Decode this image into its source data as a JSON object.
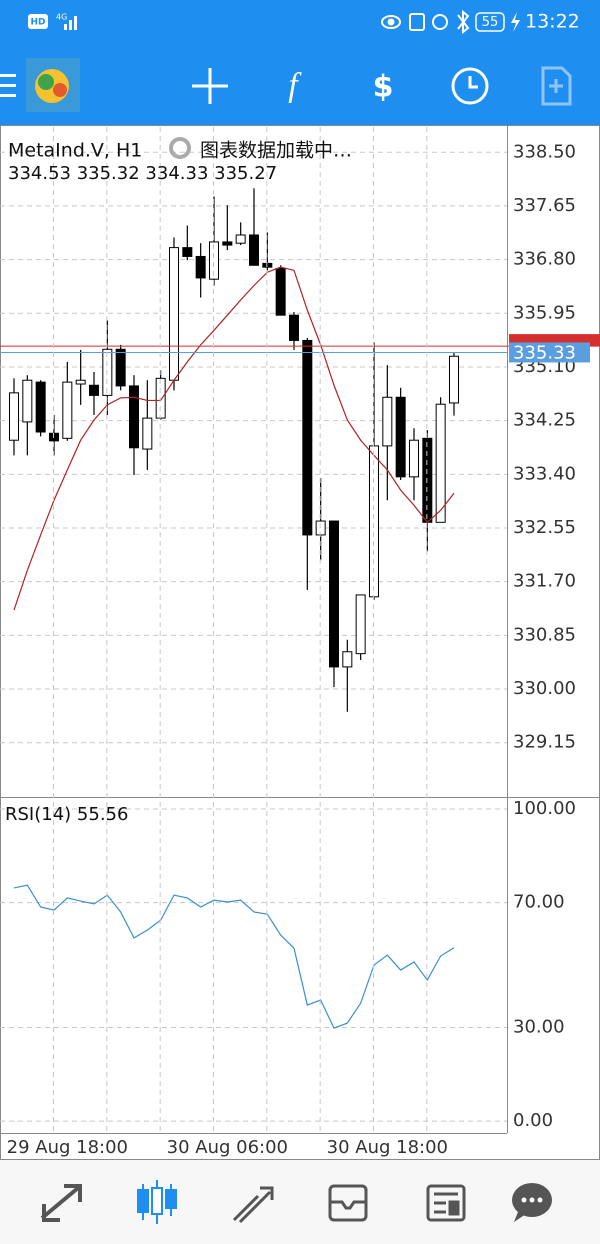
{
  "status_bar": {
    "hd": "HD",
    "network": "4G",
    "battery": "55",
    "time": "13:22"
  },
  "chart_data": [
    {
      "type": "candlestick",
      "title": "MetaInd.V, H1",
      "subtitle": "图表数据加载中…",
      "ohlc_label": "334.53 335.32 334.33 335.27",
      "open": [
        333.94,
        334.23,
        334.86,
        334.05,
        333.97,
        334.83,
        334.81,
        334.65,
        335.38,
        334.8,
        333.8,
        334.29,
        334.89,
        336.99,
        336.85,
        336.49,
        337.08,
        337.06,
        337.19,
        336.74,
        336.66,
        335.92,
        335.52,
        332.44,
        332.66,
        330.35,
        330.56,
        331.46,
        333.85,
        334.62,
        333.36,
        333.97,
        332.64,
        334.53
      ],
      "high": [
        334.92,
        334.97,
        334.89,
        334.34,
        335.18,
        335.37,
        335.02,
        335.84,
        335.45,
        334.97,
        334.89,
        335.05,
        337.15,
        337.34,
        337.06,
        337.8,
        337.66,
        337.39,
        337.93,
        337.23,
        336.71,
        335.97,
        335.56,
        333.34,
        332.66,
        330.78,
        331.49,
        335.49,
        335.13,
        334.77,
        334.13,
        334.1,
        334.62,
        335.32
      ],
      "low": [
        333.7,
        333.7,
        334.0,
        333.7,
        333.93,
        334.5,
        334.34,
        334.34,
        334.73,
        333.39,
        333.47,
        334.26,
        334.73,
        336.79,
        336.2,
        336.39,
        336.95,
        337.03,
        336.71,
        336.63,
        335.92,
        335.37,
        331.57,
        332.04,
        330.03,
        329.64,
        330.46,
        331.41,
        332.99,
        333.31,
        332.99,
        332.18,
        332.64,
        334.33
      ],
      "close": [
        334.69,
        334.89,
        334.07,
        333.93,
        334.86,
        334.89,
        334.65,
        335.38,
        334.8,
        333.82,
        334.29,
        334.92,
        336.99,
        336.85,
        336.51,
        337.08,
        337.03,
        337.19,
        336.71,
        336.68,
        335.92,
        335.52,
        332.44,
        332.66,
        330.35,
        330.59,
        331.49,
        333.85,
        334.62,
        333.36,
        333.94,
        332.64,
        334.51,
        335.27
      ],
      "up_color": "#ffffff",
      "down_color": "#000000",
      "wick_color": "#000000",
      "overlay": {
        "color": "#b22222",
        "values": [
          331.25,
          331.88,
          332.44,
          332.99,
          333.47,
          333.94,
          334.26,
          334.5,
          334.61,
          334.62,
          334.57,
          334.57,
          334.89,
          335.18,
          335.45,
          335.68,
          335.92,
          336.16,
          336.39,
          336.6,
          336.68,
          336.63,
          336.0,
          335.45,
          334.81,
          334.26,
          333.94,
          333.7,
          333.47,
          333.15,
          332.91,
          332.64,
          332.83,
          333.1
        ]
      },
      "ask": 335.43,
      "ask_color": "#d32f2f",
      "bid": 335.33,
      "bid_color": "#5b9ee0",
      "ylim": [
        328.29,
        338.9
      ],
      "yticks": [
        {
          "value": 338.5,
          "label": "338.50"
        },
        337.65,
        {
          "value": 336.8,
          "label": "336.80"
        },
        335.95,
        {
          "value": 335.1,
          "label": "335.10"
        },
        334.25,
        {
          "value": 333.4,
          "label": "333.40"
        },
        332.55,
        {
          "value": 331.7,
          "label": "331.70"
        },
        330.85,
        {
          "value": 330,
          "label": "330.00"
        },
        329.15
      ],
      "grid": true
    },
    {
      "type": "line",
      "title": "RSI(14) 55.56",
      "color": "#3a8fd0",
      "categories": [
        null,
        null,
        null,
        null,
        "29 Aug 18:00",
        null,
        null,
        null,
        null,
        null,
        null,
        null,
        null,
        null,
        null,
        null,
        "30 Aug 06:00",
        null,
        null,
        null,
        null,
        null,
        null,
        null,
        null,
        null,
        null,
        null,
        "30 Aug 18:00",
        null,
        null,
        null,
        null,
        null
      ],
      "values": [
        74.7,
        75.6,
        68.6,
        67.6,
        71.5,
        70.5,
        69.6,
        72.4,
        67.0,
        58.7,
        61.2,
        64.4,
        72.4,
        71.5,
        68.6,
        70.8,
        70.2,
        70.8,
        67.0,
        66.3,
        59.6,
        55.4,
        37.2,
        38.8,
        29.8,
        31.4,
        37.8,
        50.0,
        53.2,
        48.4,
        51.0,
        45.2,
        52.9,
        55.56
      ],
      "ylim": [
        -3.8,
        103.2
      ],
      "yticks": [
        {
          "value": 100,
          "label": "100.00"
        },
        {
          "value": 70,
          "label": "70.00"
        },
        {
          "value": 30,
          "label": "30.00"
        },
        {
          "value": 0,
          "label": "0.00"
        }
      ],
      "grid": true
    }
  ]
}
